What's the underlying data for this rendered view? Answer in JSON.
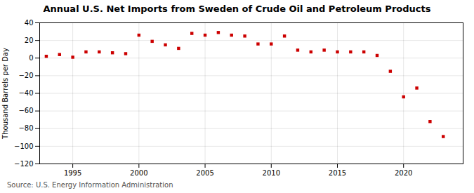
{
  "chart_data": {
    "type": "scatter",
    "title": "Annual U.S. Net Imports from Sweden of Crude Oil and Petroleum Products",
    "ylabel": "Thousand Barrels per Day",
    "source": "Source: U.S. Energy Information Administration",
    "x": [
      1993,
      1994,
      1995,
      1996,
      1997,
      1998,
      1999,
      2000,
      2001,
      2002,
      2003,
      2004,
      2005,
      2006,
      2007,
      2008,
      2009,
      2010,
      2011,
      2012,
      2013,
      2014,
      2015,
      2016,
      2017,
      2018,
      2019,
      2020,
      2021,
      2022,
      2023
    ],
    "values": [
      2,
      4,
      1,
      7,
      7,
      6,
      5,
      26,
      19,
      15,
      11,
      28,
      26,
      29,
      26,
      25,
      16,
      16,
      25,
      9,
      7,
      9,
      7,
      7,
      7,
      3,
      -15,
      -44,
      -34,
      -72,
      -89
    ],
    "color": "#cc0000",
    "marker": "square",
    "xlim": [
      1992.5,
      2024.5
    ],
    "xticks": [
      1995,
      2000,
      2005,
      2010,
      2015,
      2020
    ],
    "ylim": [
      -120,
      40
    ],
    "yticks": [
      -120,
      -100,
      -80,
      -60,
      -40,
      -20,
      0,
      20,
      40
    ],
    "grid": true
  }
}
